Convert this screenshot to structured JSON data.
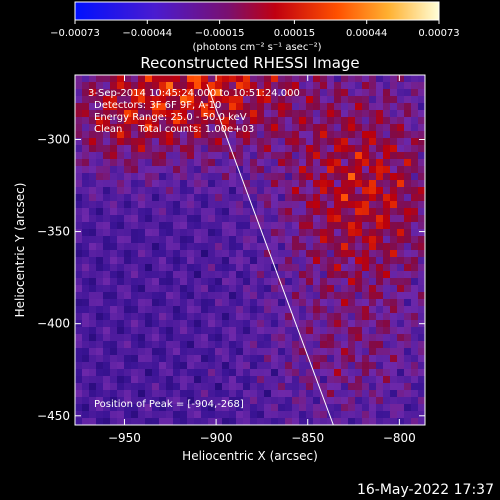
{
  "chart_data": {
    "type": "heatmap",
    "title": "Reconstructed RHESSI Image",
    "xlabel": "Heliocentric X (arcsec)",
    "ylabel": "Heliocentric Y (arcsec)",
    "xlim": [
      -977,
      -786
    ],
    "ylim": [
      -455,
      -265
    ],
    "xticks": [
      -950,
      -900,
      -850,
      -800
    ],
    "yticks": [
      -300,
      -350,
      -400,
      -450
    ],
    "xtick_labels": [
      "−950",
      "−900",
      "−850",
      "−800"
    ],
    "ytick_labels": [
      "−300",
      "−350",
      "−400",
      "−450"
    ],
    "colorbar": {
      "min": -0.00073,
      "max": 0.00073,
      "ticks": [
        -0.00073,
        -0.00044,
        -0.00015,
        0.00015,
        0.00044,
        0.00073
      ],
      "tick_labels": [
        "−0.00073",
        "−0.00044",
        "−0.00015",
        "0.00015",
        "0.00044",
        "0.00073"
      ],
      "unit_label": "(photons cm⁻² s⁻¹ asec⁻²)"
    },
    "info_lines": [
      "3-Sep-2014 10:45:24.000 to 10:51:24.000",
      "Detectors: 3F 6F 9F, A-10",
      "Energy Range: 25.0 - 50.0 keV",
      "Clean     Total counts: 1.00e+03"
    ],
    "peak_label": "Position of Peak = [-904,-268]",
    "peak": [
      -904,
      -268
    ],
    "limb_line": [
      [
        -905,
        -270
      ],
      [
        -836,
        -455
      ]
    ],
    "grid": false
  },
  "footer": {
    "date": "16-May-2022 17:37"
  }
}
